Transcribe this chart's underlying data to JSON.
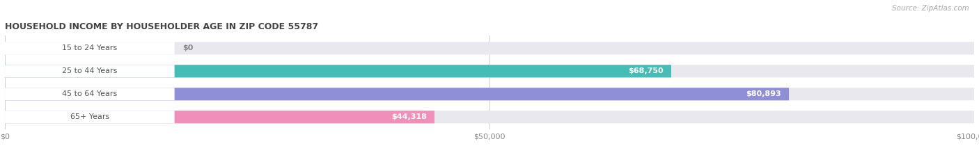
{
  "title": "HOUSEHOLD INCOME BY HOUSEHOLDER AGE IN ZIP CODE 55787",
  "source": "Source: ZipAtlas.com",
  "categories": [
    "15 to 24 Years",
    "25 to 44 Years",
    "45 to 64 Years",
    "65+ Years"
  ],
  "values": [
    0,
    68750,
    80893,
    44318
  ],
  "labels": [
    "$0",
    "$68,750",
    "$80,893",
    "$44,318"
  ],
  "bar_colors": [
    "#c9a8cc",
    "#45bcb5",
    "#8f8fd8",
    "#f090b8"
  ],
  "label_colors": [
    "#888888",
    "#ffffff",
    "#ffffff",
    "#888888"
  ],
  "background_color": "#ffffff",
  "bar_bg_color": "#e8e8ee",
  "bar_label_bg": "#ffffff",
  "xlim": [
    0,
    100000
  ],
  "xticks": [
    0,
    50000,
    100000
  ],
  "xticklabels": [
    "$0",
    "$50,000",
    "$100,000"
  ],
  "figsize": [
    14.06,
    2.33
  ],
  "dpi": 100
}
